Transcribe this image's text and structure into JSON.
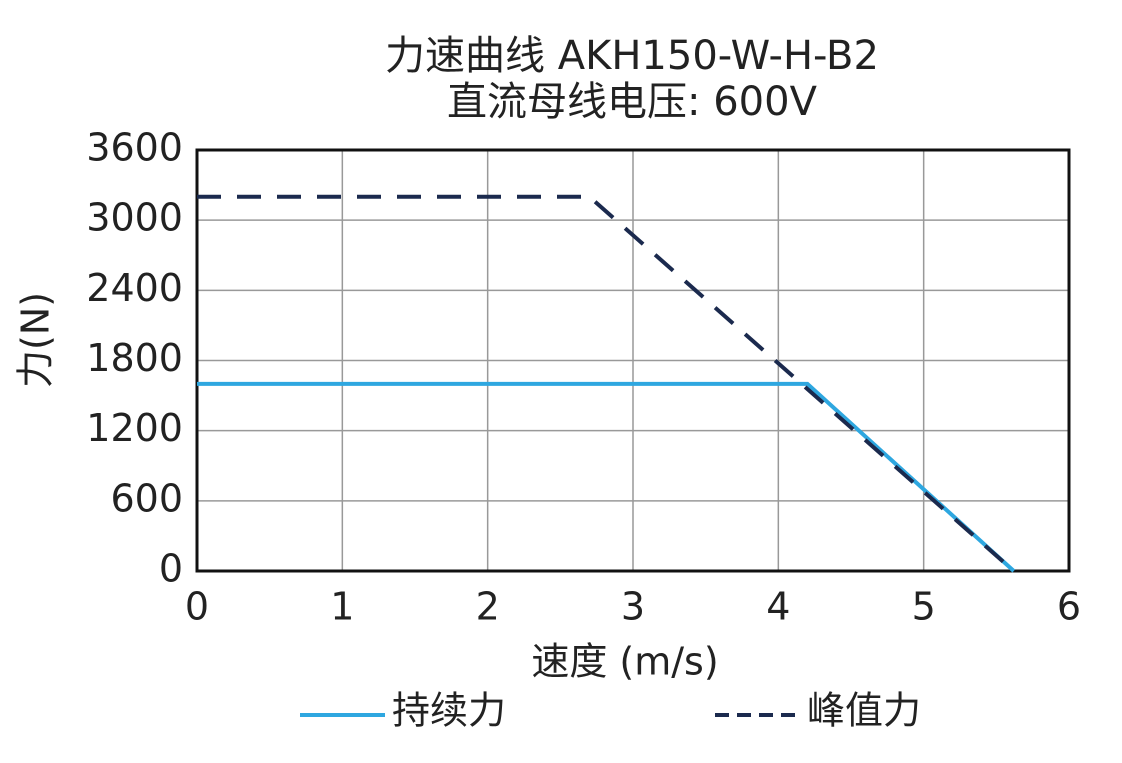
{
  "chart_data": {
    "type": "line",
    "title": "力速曲线 AKH150-W-H-B2",
    "subtitle": "直流母线电压: 600V",
    "xlabel": "速度 (m/s)",
    "ylabel": "力(N)",
    "xlim": [
      0,
      6
    ],
    "xticks": [
      0,
      1,
      2,
      3,
      4,
      5,
      6
    ],
    "ylim": [
      0,
      3600
    ],
    "yticks": [
      0,
      600,
      1200,
      1800,
      2400,
      3000,
      3600
    ],
    "grid": true,
    "legend": "bottom",
    "series": [
      {
        "name": "持续力",
        "color": "#2ea7e0",
        "dash": false,
        "x": [
          0,
          4.2,
          5.62
        ],
        "values": [
          1600,
          1600,
          0
        ]
      },
      {
        "name": "峰值力",
        "color": "#1b2a4e",
        "dash": true,
        "x": [
          0,
          2.7,
          5.62
        ],
        "values": [
          3200,
          3200,
          0
        ]
      }
    ]
  }
}
